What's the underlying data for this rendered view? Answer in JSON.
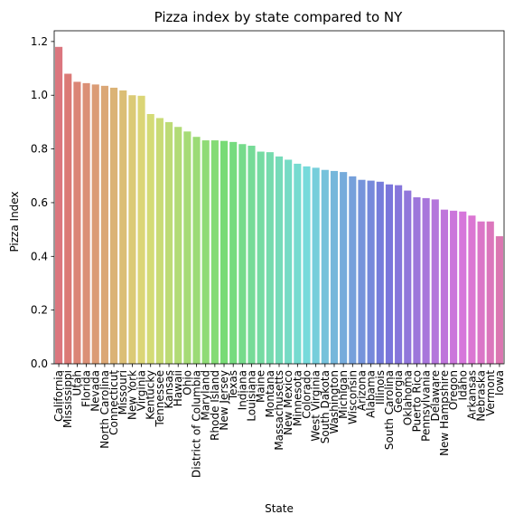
{
  "chart_data": {
    "type": "bar",
    "title": "Pizza index by state compared to NY",
    "xlabel": "State",
    "ylabel": "Pizza Index",
    "ylim": [
      0,
      1.24
    ],
    "yticks": [
      "0.0",
      "0.2",
      "0.4",
      "0.6",
      "0.8",
      "1.0",
      "1.2"
    ],
    "grid": false,
    "categories": [
      "California",
      "Mississippi",
      "Utah",
      "Florida",
      "Nevada",
      "North Carolina",
      "Connecticut",
      "Missouri",
      "New York",
      "Virginia",
      "Kentucky",
      "Tennessee",
      "Kansas",
      "Hawaii",
      "Ohio",
      "District of Columbia",
      "Maryland",
      "Rhode Island",
      "New Jersey",
      "Texas",
      "Indiana",
      "Louisiana",
      "Maine",
      "Montana",
      "Massachusetts",
      "New Mexico",
      "Minnesota",
      "Colorado",
      "West Virginia",
      "South Dakota",
      "Washington",
      "Michigan",
      "Wisconsin",
      "Arizona",
      "Alabama",
      "Illinois",
      "South Carolina",
      "Georgia",
      "Oklahoma",
      "Puerto Rico",
      "Pennsylvania",
      "Delaware",
      "New Hampshire",
      "Oregon",
      "Idaho",
      "Arkansas",
      "Nebraska",
      "Vermont",
      "Iowa"
    ],
    "values": [
      1.18,
      1.08,
      1.05,
      1.045,
      1.04,
      1.035,
      1.028,
      1.018,
      1.0,
      0.998,
      0.93,
      0.915,
      0.9,
      0.882,
      0.865,
      0.845,
      0.832,
      0.832,
      0.83,
      0.826,
      0.818,
      0.812,
      0.79,
      0.788,
      0.772,
      0.76,
      0.745,
      0.735,
      0.73,
      0.722,
      0.718,
      0.714,
      0.698,
      0.685,
      0.682,
      0.678,
      0.668,
      0.665,
      0.645,
      0.62,
      0.617,
      0.612,
      0.574,
      0.57,
      0.567,
      0.552,
      0.53,
      0.53,
      0.475
    ]
  }
}
